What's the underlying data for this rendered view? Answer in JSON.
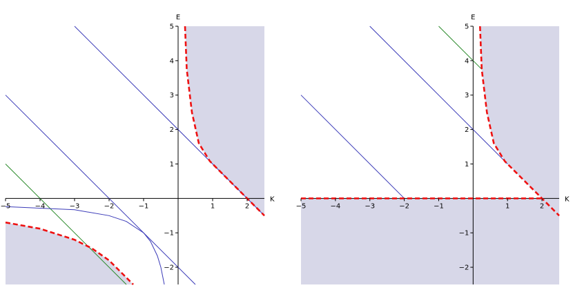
{
  "chart_data": [
    {
      "type": "line",
      "xlabel": "K",
      "ylabel": "E",
      "xlim": [
        -5,
        2.5
      ],
      "ylim": [
        -2.5,
        5
      ],
      "x_ticks": [
        -5,
        -4,
        -3,
        -2,
        -1,
        1,
        2
      ],
      "y_ticks": [
        -2,
        -1,
        1,
        2,
        3,
        4,
        5
      ],
      "colors": {
        "shade": "#d7d7e8",
        "blue": "#3a3ab8",
        "green": "#2a8a2a",
        "red": "#ee1111"
      },
      "regions": [
        {
          "name": "upper-region",
          "points": [
            [
              0.2,
              5
            ],
            [
              0.25,
              3.75
            ],
            [
              0.4,
              2.5
            ],
            [
              0.6,
              1.6
            ],
            [
              0.92,
              1.08
            ],
            [
              2.5,
              -0.5
            ],
            [
              2.5,
              5
            ]
          ]
        },
        {
          "name": "lower-region",
          "points": [
            [
              -5,
              -0.7
            ],
            [
              -4,
              -0.88
            ],
            [
              -3,
              -1.2
            ],
            [
              -2.5,
              -1.45
            ],
            [
              -2,
              -1.8
            ],
            [
              -1.5,
              -2.3
            ],
            [
              -1.3,
              -2.5
            ],
            [
              -5,
              -2.5
            ]
          ]
        }
      ],
      "series": [
        {
          "style": "blue",
          "points": [
            [
              -3,
              5
            ],
            [
              2.5,
              -0.5
            ]
          ]
        },
        {
          "style": "blue",
          "points": [
            [
              -5,
              3
            ],
            [
              0.5,
              -2.5
            ]
          ]
        },
        {
          "style": "green",
          "points": [
            [
              -5,
              1
            ],
            [
              -1.5,
              -2.5
            ]
          ]
        },
        {
          "style": "blue",
          "points": [
            [
              -5,
              -0.24
            ],
            [
              -3,
              -0.33
            ],
            [
              -2,
              -0.5
            ],
            [
              -1.5,
              -0.67
            ],
            [
              -1,
              -1
            ],
            [
              -0.8,
              -1.25
            ],
            [
              -0.6,
              -1.67
            ],
            [
              -0.5,
              -2
            ],
            [
              -0.4,
              -2.5
            ]
          ]
        },
        {
          "style": "dashed",
          "points": [
            [
              0.2,
              5
            ],
            [
              0.25,
              3.75
            ],
            [
              0.4,
              2.5
            ],
            [
              0.6,
              1.6
            ],
            [
              0.92,
              1.08
            ],
            [
              2.5,
              -0.5
            ]
          ]
        },
        {
          "style": "dashed",
          "points": [
            [
              -5,
              -0.7
            ],
            [
              -4,
              -0.88
            ],
            [
              -3,
              -1.2
            ],
            [
              -2.5,
              -1.45
            ],
            [
              -2,
              -1.8
            ],
            [
              -1.5,
              -2.3
            ],
            [
              -1.3,
              -2.5
            ]
          ]
        }
      ]
    },
    {
      "type": "line",
      "xlabel": "K",
      "ylabel": "E",
      "xlim": [
        -5,
        2.5
      ],
      "ylim": [
        -2.5,
        5
      ],
      "x_ticks": [
        -5,
        -4,
        -3,
        -2,
        -1,
        1,
        2
      ],
      "y_ticks": [
        -2,
        -1,
        1,
        2,
        3,
        4,
        5
      ],
      "colors": {
        "shade": "#d7d7e8",
        "blue": "#3a3ab8",
        "green": "#2a8a2a",
        "red": "#ee1111"
      },
      "regions": [
        {
          "name": "upper-region",
          "points": [
            [
              0.2,
              5
            ],
            [
              0.25,
              3.75
            ],
            [
              0.4,
              2.5
            ],
            [
              0.6,
              1.6
            ],
            [
              0.92,
              1.08
            ],
            [
              2.5,
              -0.5
            ],
            [
              2.5,
              5
            ]
          ]
        },
        {
          "name": "lower-region",
          "points": [
            [
              -5,
              0
            ],
            [
              2,
              0
            ],
            [
              2.5,
              -0.5
            ],
            [
              2.5,
              -2.5
            ],
            [
              -5,
              -2.5
            ]
          ]
        }
      ],
      "series": [
        {
          "style": "blue",
          "points": [
            [
              -3,
              5
            ],
            [
              1,
              1
            ]
          ]
        },
        {
          "style": "blue",
          "points": [
            [
              -5,
              3
            ],
            [
              -2,
              0
            ]
          ]
        },
        {
          "style": "green",
          "points": [
            [
              -1,
              5
            ],
            [
              0.25,
              3.75
            ]
          ]
        },
        {
          "style": "dashed",
          "points": [
            [
              0.2,
              5
            ],
            [
              0.25,
              3.75
            ],
            [
              0.4,
              2.5
            ],
            [
              0.6,
              1.6
            ],
            [
              0.92,
              1.08
            ],
            [
              2.5,
              -0.5
            ]
          ]
        },
        {
          "style": "dashed",
          "points": [
            [
              -5,
              0
            ],
            [
              2,
              0
            ]
          ]
        }
      ]
    }
  ]
}
